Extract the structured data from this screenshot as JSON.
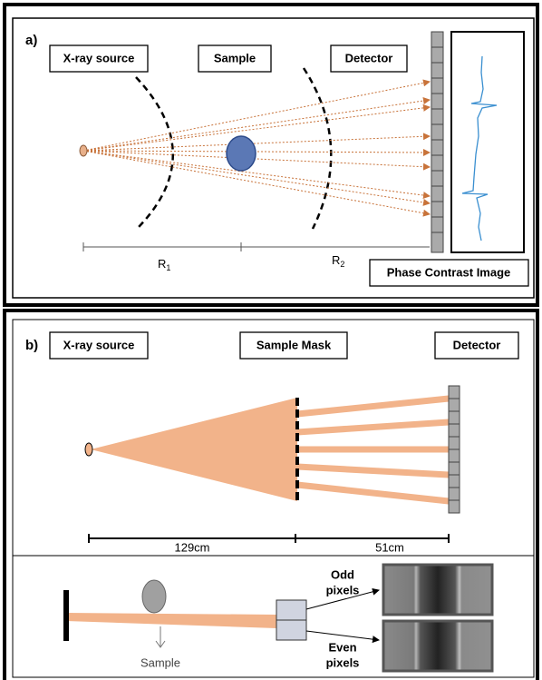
{
  "panel_a": {
    "tag": "a)",
    "labels": [
      "X-ray source",
      "Sample",
      "Detector"
    ],
    "distances": [
      {
        "symbol": "R",
        "subscript": "1"
      },
      {
        "symbol": "R",
        "subscript": "2"
      }
    ],
    "image_caption": "Phase Contrast Image"
  },
  "panel_b": {
    "tag": "b)",
    "labels": [
      "X-ray source",
      "Sample Mask",
      "Detector"
    ],
    "distances": [
      "129cm",
      "51cm"
    ],
    "inset": {
      "sample": "Sample",
      "odd": [
        "Odd",
        "pixels"
      ],
      "even": [
        "Even",
        "pixels"
      ]
    }
  }
}
